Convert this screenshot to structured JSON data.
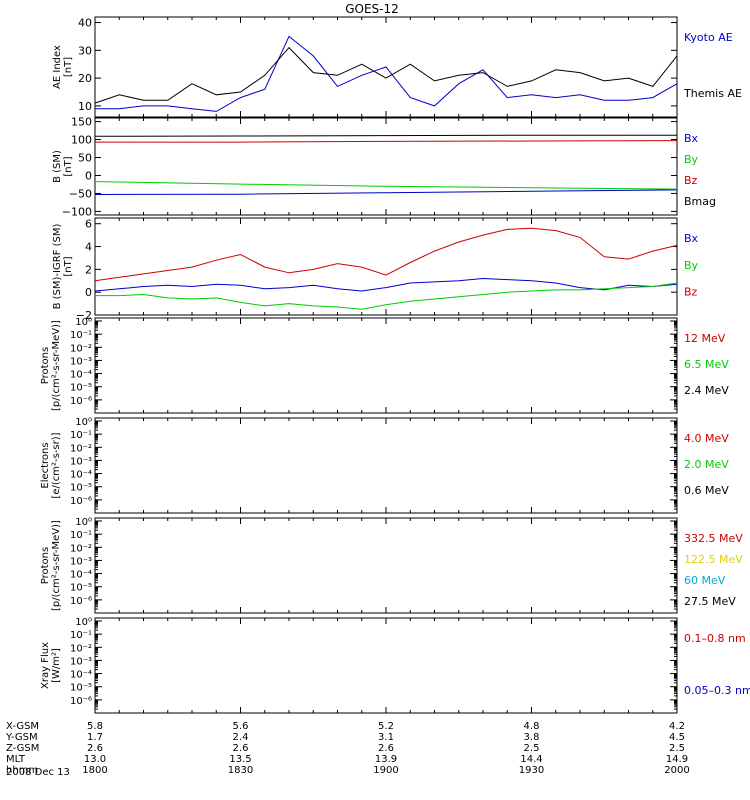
{
  "title": "GOES-12",
  "colors": {
    "black": "#000000",
    "blue": "#0000cc",
    "red": "#cc0000",
    "green": "#00cc00",
    "yellow": "#e6d200",
    "cyan": "#00a8e0"
  },
  "x_axis": {
    "rows": [
      {
        "label": "X-GSM",
        "values": [
          "5.8",
          "5.6",
          "5.2",
          "4.8",
          "4.2"
        ]
      },
      {
        "label": "Y-GSM",
        "values": [
          "1.7",
          "2.4",
          "3.1",
          "3.8",
          "4.5"
        ]
      },
      {
        "label": "Z-GSM",
        "values": [
          "2.6",
          "2.6",
          "2.6",
          "2.5",
          "2.5"
        ]
      },
      {
        "label": "MLT",
        "values": [
          "13.0",
          "13.5",
          "13.9",
          "14.4",
          "14.9"
        ]
      },
      {
        "label": "hhmm",
        "values": [
          "1800",
          "1830",
          "1900",
          "1930",
          "2000"
        ]
      }
    ],
    "date": "2008 Dec 13"
  },
  "chart_data": [
    {
      "type": "line",
      "ylabel": [
        "AE Index",
        "[nT]"
      ],
      "ylim": [
        6,
        42
      ],
      "yticks": [
        10,
        20,
        30,
        40
      ],
      "tick_labels": [
        "10",
        "20",
        "30",
        "40"
      ],
      "x": [
        1800,
        1805,
        1810,
        1815,
        1820,
        1825,
        1830,
        1835,
        1840,
        1845,
        1850,
        1855,
        1900,
        1905,
        1910,
        1915,
        1920,
        1925,
        1930,
        1935,
        1940,
        1945,
        1950,
        1955,
        2000
      ],
      "series": [
        {
          "name": "Kyoto AE",
          "color_key": "blue",
          "values": [
            9,
            9,
            10,
            10,
            9,
            8,
            13,
            16,
            35,
            28,
            17,
            21,
            24,
            13,
            10,
            18,
            23,
            13,
            14,
            13,
            14,
            12,
            12,
            13,
            18
          ]
        },
        {
          "name": "Themis AE",
          "color_key": "black",
          "values": [
            11,
            14,
            12,
            12,
            18,
            14,
            15,
            21,
            31,
            22,
            21,
            25,
            20,
            25,
            19,
            21,
            22,
            17,
            19,
            23,
            22,
            19,
            20,
            17,
            28
          ]
        }
      ]
    },
    {
      "type": "line",
      "ylabel": [
        "B (SM)",
        "[nT]"
      ],
      "ylim": [
        -110,
        160
      ],
      "yticks": [
        -100,
        -50,
        0,
        50,
        100,
        150
      ],
      "tick_labels": [
        "−100",
        "−50",
        "0",
        "50",
        "100",
        "150"
      ],
      "x": [
        1800,
        1830,
        1900,
        1930,
        2000
      ],
      "series": [
        {
          "name": "Bx",
          "color_key": "blue",
          "values": [
            -53,
            -52,
            -48,
            -44,
            -40
          ]
        },
        {
          "name": "By",
          "color_key": "green",
          "values": [
            -17,
            -24,
            -30,
            -34,
            -38
          ]
        },
        {
          "name": "Bz",
          "color_key": "red",
          "values": [
            93,
            93,
            95,
            96,
            97
          ]
        },
        {
          "name": "Bmag",
          "color_key": "black",
          "values": [
            109,
            110,
            111,
            112,
            112
          ]
        }
      ]
    },
    {
      "type": "line",
      "ylabel": [
        "B (SM)-IGRF (SM)",
        "[nT]"
      ],
      "ylim": [
        -2,
        6.5
      ],
      "yticks": [
        -2,
        0,
        2,
        4,
        6
      ],
      "tick_labels": [
        "−2",
        "0",
        "2",
        "4",
        "6"
      ],
      "x": [
        1800,
        1805,
        1810,
        1815,
        1820,
        1825,
        1830,
        1835,
        1840,
        1845,
        1850,
        1855,
        1900,
        1905,
        1910,
        1915,
        1920,
        1925,
        1930,
        1935,
        1940,
        1945,
        1950,
        1955,
        2000
      ],
      "series": [
        {
          "name": "Bx",
          "color_key": "blue",
          "values": [
            0.1,
            0.3,
            0.5,
            0.6,
            0.5,
            0.7,
            0.6,
            0.3,
            0.4,
            0.6,
            0.3,
            0.1,
            0.4,
            0.8,
            0.9,
            1.0,
            1.2,
            1.1,
            1.0,
            0.8,
            0.4,
            0.2,
            0.6,
            0.5,
            0.7
          ]
        },
        {
          "name": "By",
          "color_key": "green",
          "values": [
            -0.3,
            -0.3,
            -0.2,
            -0.5,
            -0.6,
            -0.5,
            -0.9,
            -1.2,
            -1.0,
            -1.2,
            -1.3,
            -1.5,
            -1.1,
            -0.8,
            -0.6,
            -0.4,
            -0.2,
            0.0,
            0.1,
            0.2,
            0.2,
            0.3,
            0.4,
            0.5,
            0.8
          ]
        },
        {
          "name": "Bz",
          "color_key": "red",
          "values": [
            1.0,
            1.3,
            1.6,
            1.9,
            2.2,
            2.8,
            3.3,
            2.2,
            1.7,
            2.0,
            2.5,
            2.2,
            1.5,
            2.6,
            3.6,
            4.4,
            5.0,
            5.5,
            5.6,
            5.4,
            4.8,
            3.1,
            2.9,
            3.6,
            4.1
          ]
        }
      ]
    },
    {
      "type": "line",
      "ylabel": [
        "Protons",
        "[p/(cm²-s-sr-MeV)]"
      ],
      "ylim_exp": [
        -7,
        0
      ],
      "tick_labels": [
        "10⁰",
        "10⁻¹",
        "10⁻²",
        "10⁻³",
        "10⁻⁴",
        "10⁻⁵",
        "10⁻⁶"
      ],
      "series": [
        {
          "name": "12 MeV",
          "color_key": "red",
          "values": []
        },
        {
          "name": "6.5 MeV",
          "color_key": "green",
          "values": []
        },
        {
          "name": "2.4 MeV",
          "color_key": "black",
          "values": []
        }
      ]
    },
    {
      "type": "line",
      "ylabel": [
        "Electrons",
        "[e/(cm²-s-sr)]"
      ],
      "ylim_exp": [
        -7,
        0
      ],
      "tick_labels": [
        "10⁰",
        "10⁻¹",
        "10⁻²",
        "10⁻³",
        "10⁻⁴",
        "10⁻⁵",
        "10⁻⁶"
      ],
      "series": [
        {
          "name": "4.0 MeV",
          "color_key": "red",
          "values": []
        },
        {
          "name": "2.0 MeV",
          "color_key": "green",
          "values": []
        },
        {
          "name": "0.6 MeV",
          "color_key": "black",
          "values": []
        }
      ]
    },
    {
      "type": "line",
      "ylabel": [
        "Protons",
        "[p/(cm²-s-sr-MeV)]"
      ],
      "ylim_exp": [
        -7,
        0
      ],
      "tick_labels": [
        "10⁰",
        "10⁻¹",
        "10⁻²",
        "10⁻³",
        "10⁻⁴",
        "10⁻⁵",
        "10⁻⁶"
      ],
      "series": [
        {
          "name": "332.5 MeV",
          "color_key": "red",
          "values": []
        },
        {
          "name": "122.5 MeV",
          "color_key": "yellow",
          "values": []
        },
        {
          "name": "60 MeV",
          "color_key": "cyan",
          "values": []
        },
        {
          "name": "27.5 MeV",
          "color_key": "black",
          "values": []
        }
      ]
    },
    {
      "type": "line",
      "ylabel": [
        "Xray Flux",
        "[W/m²]"
      ],
      "ylim_exp": [
        -7,
        0
      ],
      "tick_labels": [
        "10⁰",
        "10⁻¹",
        "10⁻²",
        "10⁻³",
        "10⁻⁴",
        "10⁻⁵",
        "10⁻⁶"
      ],
      "series": [
        {
          "name": "0.1–0.8 nm",
          "color_key": "red",
          "values": []
        },
        {
          "name": "0.05–0.3 nm",
          "color_key": "blue",
          "values": []
        }
      ]
    }
  ]
}
